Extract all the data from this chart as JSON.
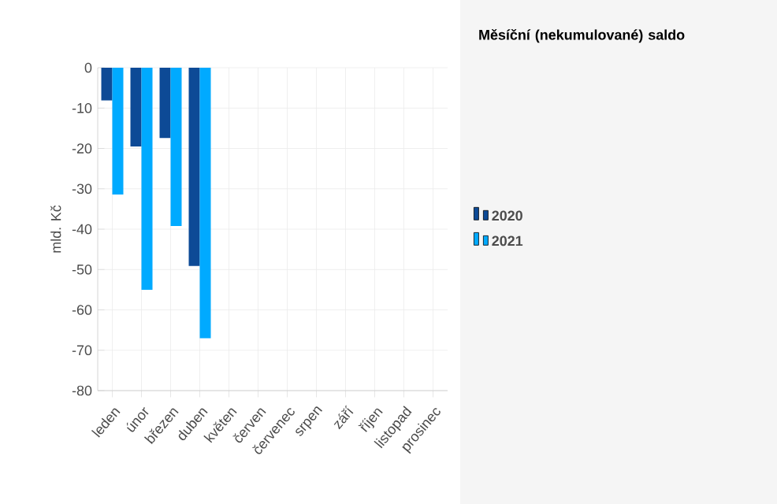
{
  "chart_data": {
    "type": "bar",
    "title": "Měsíční (nekumulované) saldo",
    "ylabel": "mld. Kč",
    "categories": [
      "leden",
      "únor",
      "březen",
      "duben",
      "květen",
      "červen",
      "červenec",
      "srpen",
      "září",
      "říjen",
      "listopad",
      "prosinec"
    ],
    "series": [
      {
        "name": "2020",
        "color": "#0d4a96",
        "values": [
          -8.1,
          -19.5,
          -17.4,
          -49.1,
          null,
          null,
          null,
          null,
          null,
          null,
          null,
          null
        ]
      },
      {
        "name": "2021",
        "color": "#00aaff",
        "values": [
          -31.4,
          -55,
          -39.2,
          -67,
          null,
          null,
          null,
          null,
          null,
          null,
          null,
          null
        ]
      }
    ],
    "ylim": [
      -80,
      0
    ],
    "yticks": [
      -80,
      -70,
      -60,
      -50,
      -40,
      -30,
      -20,
      -10,
      0
    ],
    "grid": true,
    "legend": "right"
  }
}
